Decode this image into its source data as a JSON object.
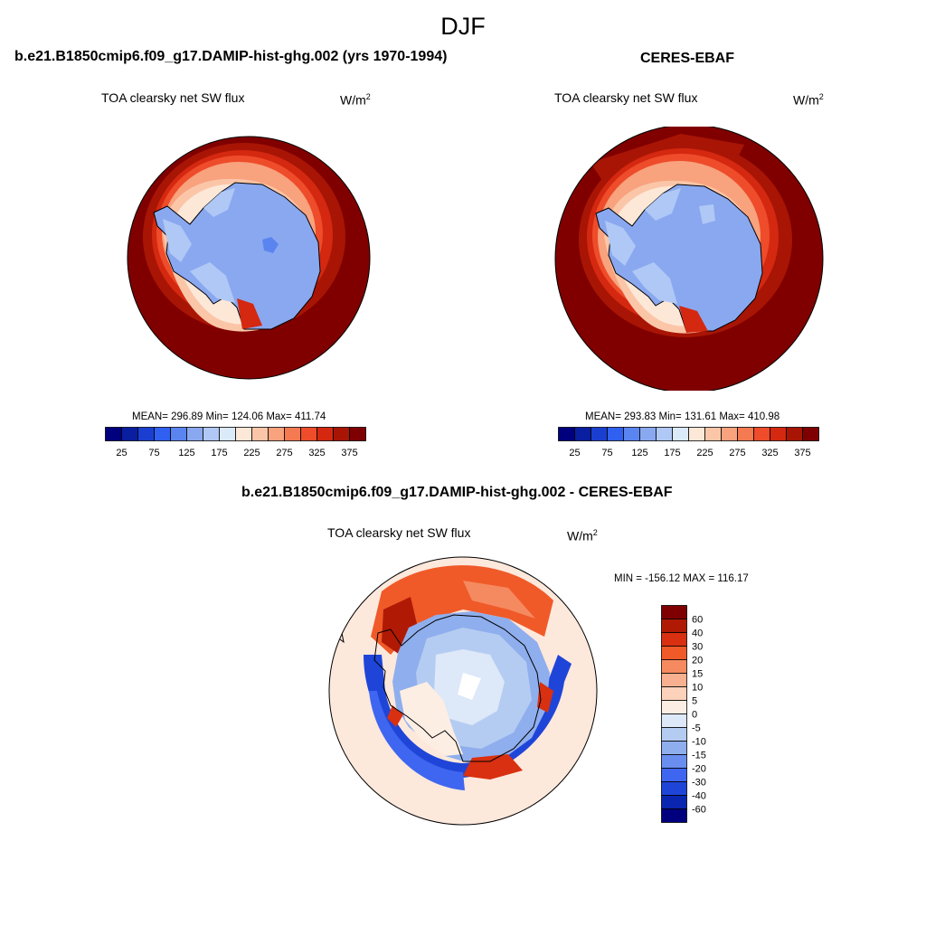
{
  "title": "DJF",
  "panels": [
    {
      "id": "model",
      "case_title": "b.e21.B1850cmip6.f09_g17.DAMIP-hist-ghg.002 (yrs 1970-1994)",
      "variable": "TOA clearsky net SW flux",
      "units_base": "W/m",
      "units_exp": "2",
      "stats": "MEAN= 296.89  Min= 124.06  Max= 411.74"
    },
    {
      "id": "obs",
      "case_title": "CERES-EBAF",
      "variable": "TOA clearsky net SW flux",
      "units_base": "W/m",
      "units_exp": "2",
      "stats": "MEAN= 293.83  Min= 131.61  Max= 410.98"
    },
    {
      "id": "diff",
      "case_title": "b.e21.B1850cmip6.f09_g17.DAMIP-hist-ghg.002 - CERES-EBAF",
      "variable": "TOA clearsky net SW flux",
      "units_base": "W/m",
      "units_exp": "2",
      "stats": "MIN = -156.12 MAX = 116.17"
    }
  ],
  "colorbar_abs": {
    "colors": [
      "#00007f",
      "#0a1ea0",
      "#1a3fd0",
      "#2f60f0",
      "#5a85f0",
      "#8aa8f0",
      "#b0c8f5",
      "#daeaf8",
      "#fde8d8",
      "#fbc6a8",
      "#f8a27e",
      "#f47a52",
      "#ee4c2a",
      "#d42810",
      "#a81505",
      "#7f0000"
    ],
    "tick_labels": [
      "25",
      "75",
      "125",
      "175",
      "225",
      "275",
      "325",
      "375"
    ]
  },
  "colorbar_diff": {
    "colors": [
      "#7f0000",
      "#b01a05",
      "#d83010",
      "#f05a28",
      "#f58a60",
      "#f9b090",
      "#fcd2ba",
      "#fdeee4",
      "#dde8f8",
      "#b5ccf2",
      "#8faeed",
      "#6a8ef0",
      "#3f66f0",
      "#1f45d8",
      "#0a25b0",
      "#00007f"
    ],
    "tick_labels": [
      "60",
      "40",
      "30",
      "20",
      "15",
      "10",
      "5",
      "0",
      "-5",
      "-10",
      "-15",
      "-20",
      "-30",
      "-40",
      "-60"
    ]
  },
  "map_colors": {
    "ocean_far": "#800000",
    "ring_1": "#a81505",
    "ring_2": "#d42810",
    "ring_3": "#ee4c2a",
    "ring_4": "#f8a27e",
    "ring_5": "#fde8d8",
    "ice": "#8aa8f0",
    "ice_light": "#b0c8f5",
    "ice_edge": "#daeaf8",
    "diff_bg": "#fde8dc",
    "diff_blue": "#1f45d8",
    "diff_mid_blue": "#6a8ef0",
    "diff_light_blue": "#b5ccf2",
    "diff_red": "#d83010",
    "diff_orange": "#f58a60"
  }
}
